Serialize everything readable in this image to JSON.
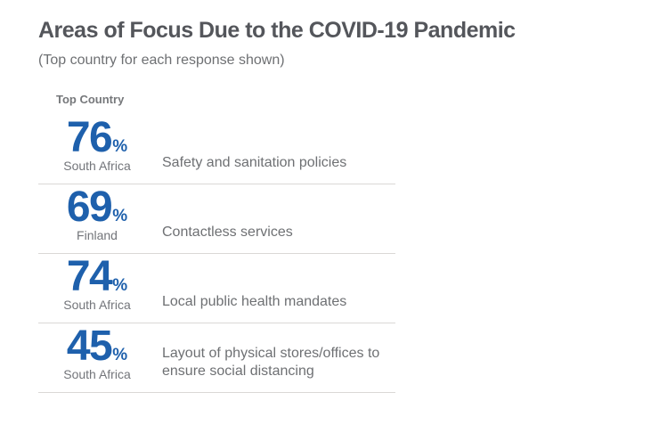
{
  "colors": {
    "accent_blue": "#1E60AC",
    "title_gray": "#54565B",
    "text_gray": "#6E7073",
    "label_gray": "#76787B",
    "divider_gray": "#DAD8D6",
    "background": "#FFFFFF"
  },
  "chart_data": {
    "type": "table",
    "title": "Areas of Focus Due to the COVID-19 Pandemic",
    "subtitle": "(Top country for each response shown)",
    "column_label": "Top Country",
    "unit": "%",
    "legend_position": "none",
    "grid": "row-dividers",
    "categories": [
      "Safety and sanitation policies",
      "Contactless services",
      "Local public health mandates",
      "Layout of physical stores/offices to ensure social distancing"
    ],
    "values": [
      76,
      69,
      74,
      45
    ],
    "items": [
      {
        "value": "76",
        "percent": 76,
        "country": "South Africa",
        "response": "Safety and sanitation policies"
      },
      {
        "value": "69",
        "percent": 69,
        "country": "Finland",
        "response": "Contactless services"
      },
      {
        "value": "74",
        "percent": 74,
        "country": "South Africa",
        "response": "Local public health mandates"
      },
      {
        "value": "45",
        "percent": 45,
        "country": "South Africa",
        "response": "Layout of physical stores/offices to ensure social distancing"
      }
    ]
  }
}
